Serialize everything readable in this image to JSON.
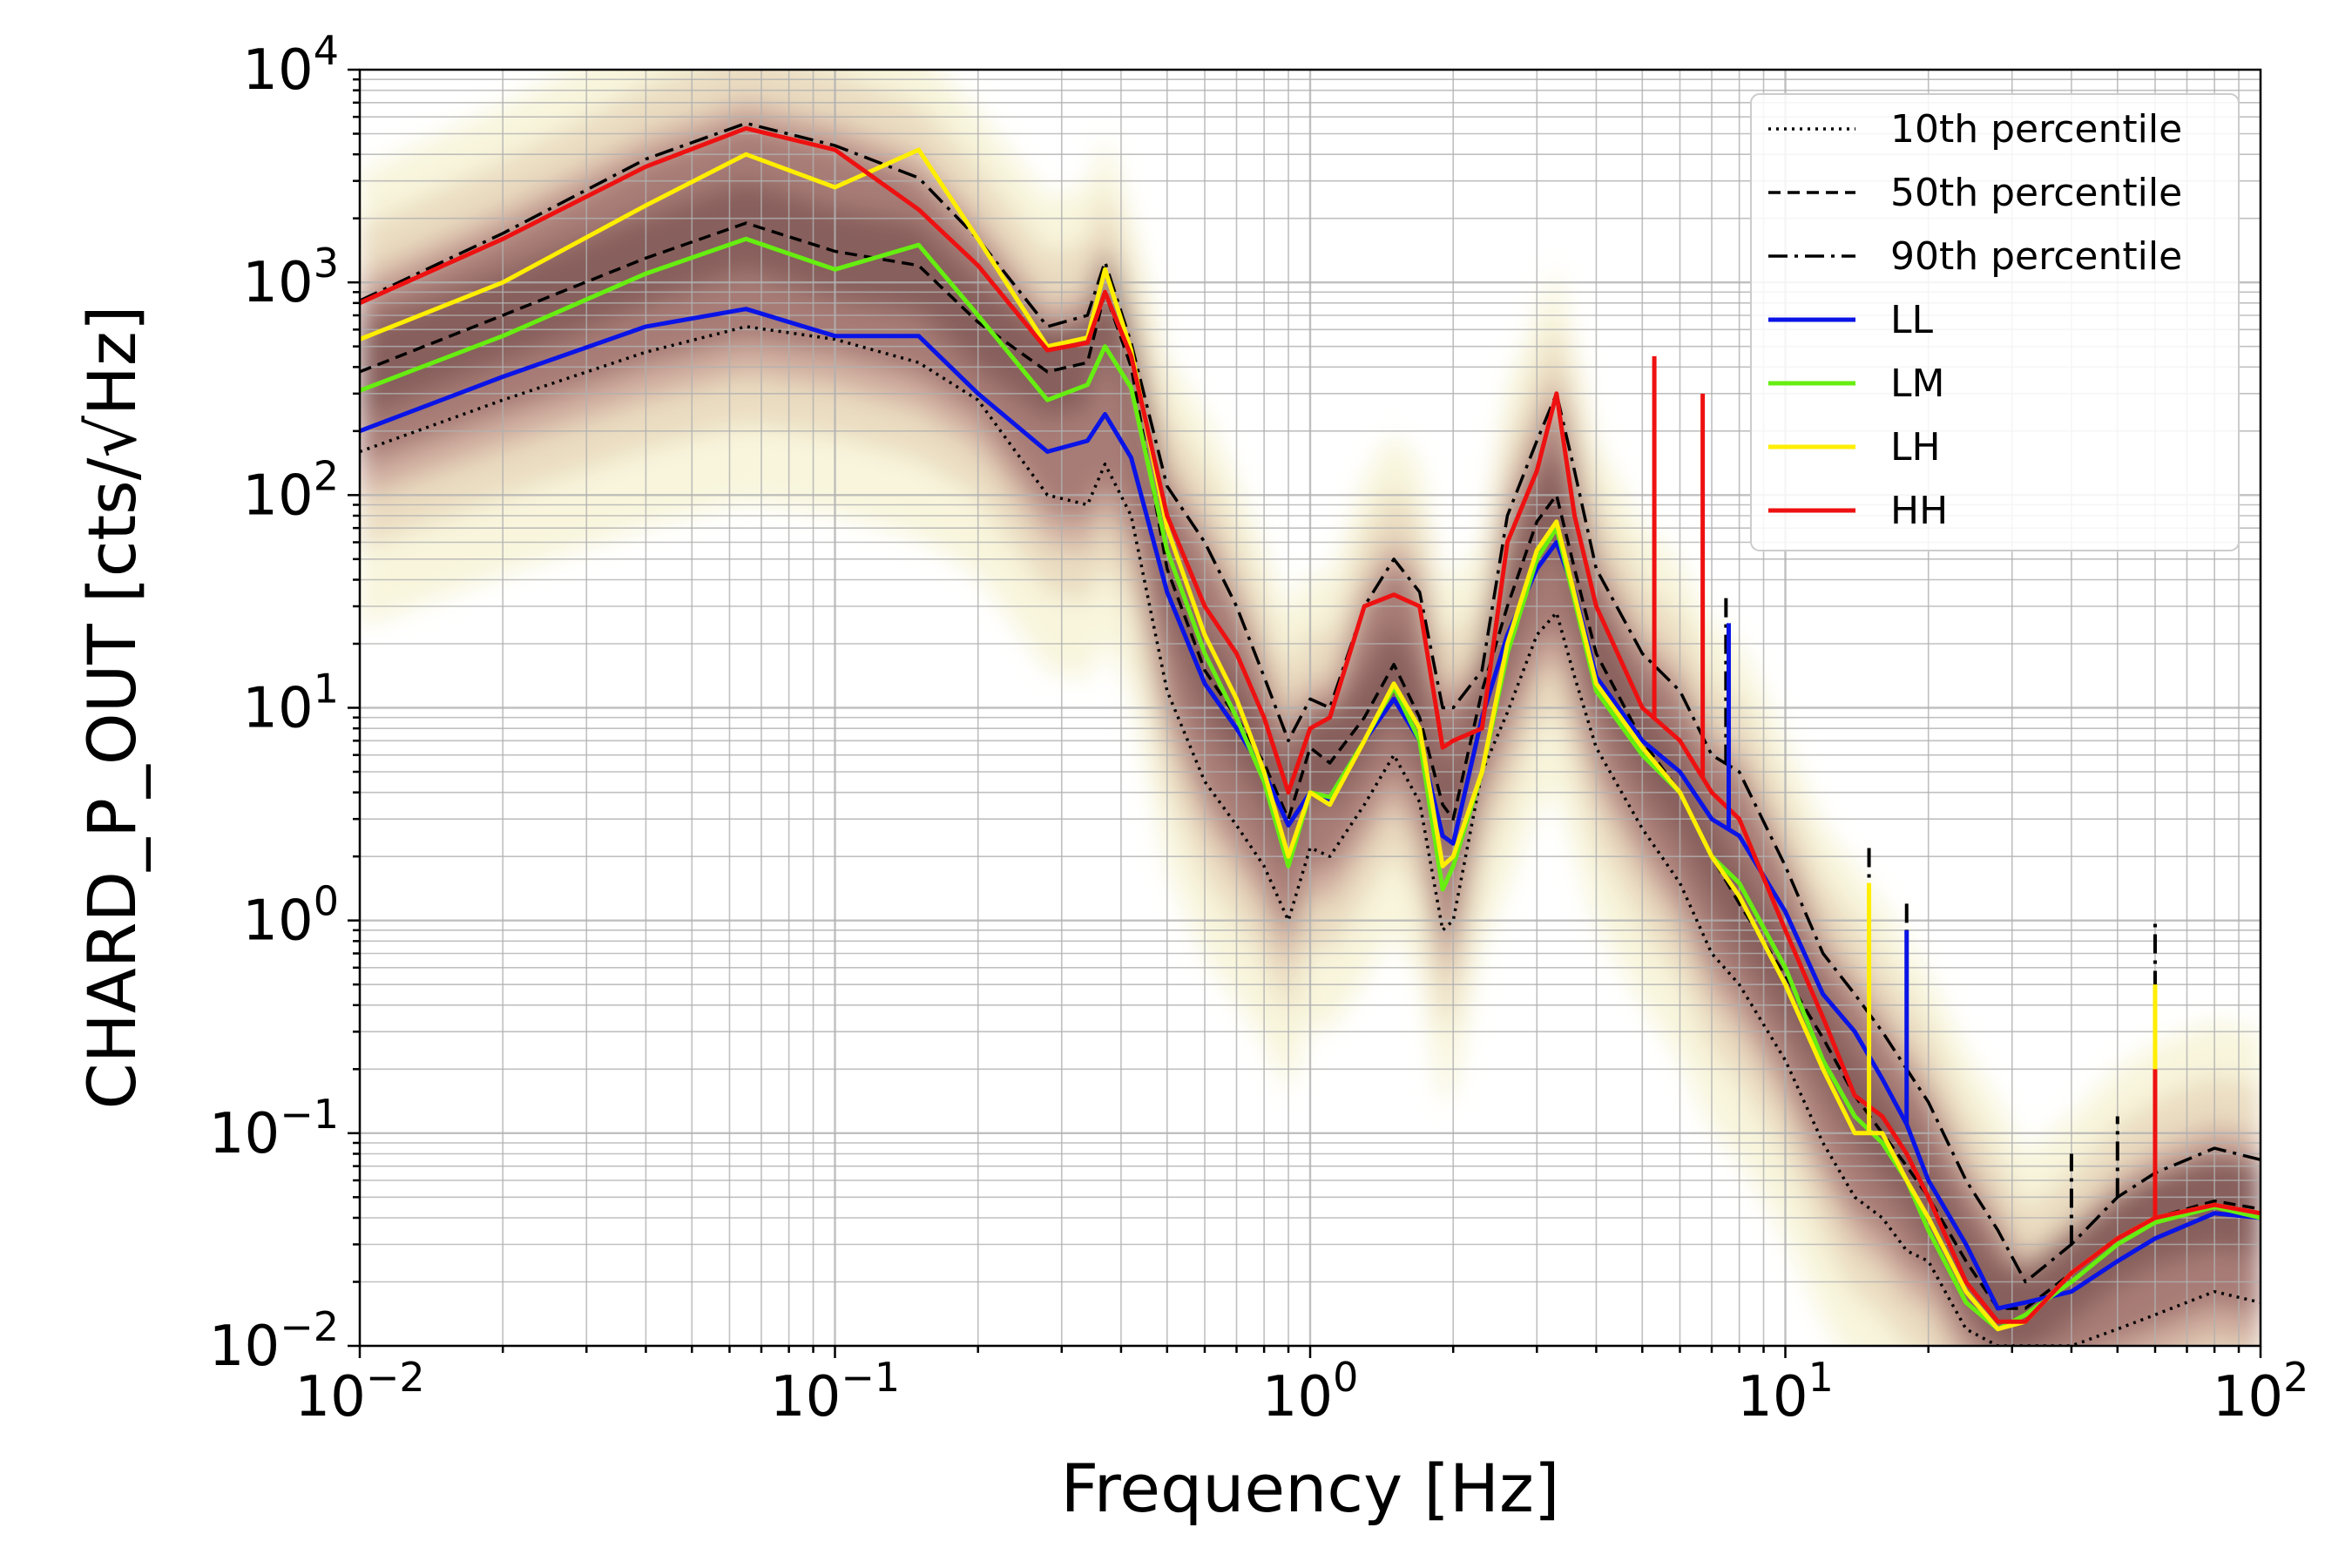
{
  "chart_data": {
    "type": "line",
    "xscale": "log",
    "yscale": "log",
    "xlabel": "Frequency [Hz]",
    "ylabel": "CHARD_P_OUT [cts/√Hz]",
    "xlim": [
      0.01,
      100
    ],
    "ylim": [
      0.01,
      10000
    ],
    "grid": true,
    "legend_position": "top-right",
    "x_ticks": [
      {
        "base": "10",
        "exp": "−2",
        "value": 0.01
      },
      {
        "base": "10",
        "exp": "−1",
        "value": 0.1
      },
      {
        "base": "10",
        "exp": "0",
        "value": 1
      },
      {
        "base": "10",
        "exp": "1",
        "value": 10
      },
      {
        "base": "10",
        "exp": "2",
        "value": 100
      }
    ],
    "y_ticks": [
      {
        "base": "10",
        "exp": "−2",
        "value": 0.01
      },
      {
        "base": "10",
        "exp": "−1",
        "value": 0.1
      },
      {
        "base": "10",
        "exp": "0",
        "value": 1
      },
      {
        "base": "10",
        "exp": "1",
        "value": 10
      },
      {
        "base": "10",
        "exp": "2",
        "value": 100
      },
      {
        "base": "10",
        "exp": "3",
        "value": 1000
      },
      {
        "base": "10",
        "exp": "4",
        "value": 10000
      }
    ],
    "series": [
      {
        "name": "10th percentile",
        "color": "#000000",
        "style": "dotted",
        "x": [
          0.01,
          0.02,
          0.04,
          0.065,
          0.1,
          0.15,
          0.2,
          0.28,
          0.34,
          0.37,
          0.42,
          0.5,
          0.6,
          0.7,
          0.8,
          0.9,
          1.0,
          1.1,
          1.3,
          1.5,
          1.7,
          1.9,
          2.0,
          2.3,
          2.6,
          3.0,
          3.3,
          3.6,
          4.0,
          5.0,
          6.0,
          7.0,
          8.0,
          10.0,
          12.0,
          14.0,
          16.0,
          18.0,
          20.0,
          24.0,
          28.0,
          32.0,
          40.0,
          50.0,
          60.0,
          80.0,
          100.0
        ],
        "y": [
          160,
          280,
          470,
          620,
          540,
          420,
          280,
          100,
          90,
          140,
          80,
          12,
          4.5,
          2.8,
          1.8,
          1.0,
          2.2,
          2.0,
          3.5,
          6.0,
          3.6,
          0.9,
          1.0,
          5.0,
          9.5,
          22,
          28,
          14,
          6.5,
          2.7,
          1.5,
          0.7,
          0.5,
          0.22,
          0.09,
          0.05,
          0.04,
          0.028,
          0.025,
          0.012,
          0.01,
          0.01,
          0.01,
          0.012,
          0.014,
          0.018,
          0.016
        ]
      },
      {
        "name": "50th percentile",
        "color": "#000000",
        "style": "dashed",
        "x": [
          0.01,
          0.02,
          0.04,
          0.065,
          0.1,
          0.15,
          0.2,
          0.28,
          0.34,
          0.37,
          0.42,
          0.5,
          0.6,
          0.7,
          0.8,
          0.9,
          1.0,
          1.1,
          1.3,
          1.5,
          1.7,
          1.9,
          2.0,
          2.3,
          2.6,
          3.0,
          3.3,
          3.6,
          4.0,
          5.0,
          6.0,
          7.0,
          8.0,
          10.0,
          12.0,
          14.0,
          16.0,
          18.0,
          20.0,
          24.0,
          28.0,
          32.0,
          40.0,
          50.0,
          60.0,
          80.0,
          100.0
        ],
        "y": [
          380,
          700,
          1300,
          1900,
          1400,
          1200,
          650,
          380,
          420,
          900,
          400,
          45,
          15,
          9.0,
          5.5,
          3.0,
          6.5,
          5.5,
          9.0,
          16,
          9.0,
          3.5,
          3.0,
          12,
          30,
          75,
          100,
          45,
          18,
          7.0,
          4.0,
          2.0,
          1.2,
          0.55,
          0.28,
          0.15,
          0.1,
          0.07,
          0.05,
          0.025,
          0.015,
          0.015,
          0.022,
          0.032,
          0.04,
          0.048,
          0.044
        ]
      },
      {
        "name": "90th percentile",
        "color": "#000000",
        "style": "dashdot",
        "x": [
          0.01,
          0.02,
          0.04,
          0.065,
          0.1,
          0.15,
          0.2,
          0.28,
          0.34,
          0.37,
          0.42,
          0.5,
          0.6,
          0.7,
          0.8,
          0.9,
          1.0,
          1.1,
          1.3,
          1.5,
          1.7,
          1.9,
          2.0,
          2.3,
          2.6,
          3.0,
          3.3,
          3.6,
          4.0,
          5.0,
          6.0,
          7.0,
          8.0,
          10.0,
          12.0,
          14.0,
          16.0,
          18.0,
          20.0,
          24.0,
          28.0,
          32.0,
          40.0,
          50.0,
          60.0,
          80.0,
          100.0
        ],
        "y": [
          820,
          1700,
          3800,
          5600,
          4400,
          3100,
          1600,
          620,
          700,
          1250,
          520,
          110,
          60,
          30,
          14,
          7.0,
          11,
          10,
          30,
          50,
          35,
          10,
          10,
          15,
          80,
          180,
          300,
          130,
          45,
          18,
          12,
          6.0,
          5.0,
          1.8,
          0.7,
          0.45,
          0.3,
          0.2,
          0.14,
          0.06,
          0.035,
          0.02,
          0.03,
          0.05,
          0.065,
          0.085,
          0.075
        ]
      },
      {
        "name": "LL",
        "color": "#0a14e6",
        "style": "solid",
        "x": [
          0.01,
          0.02,
          0.04,
          0.065,
          0.1,
          0.15,
          0.2,
          0.28,
          0.34,
          0.37,
          0.42,
          0.5,
          0.6,
          0.7,
          0.8,
          0.9,
          1.0,
          1.1,
          1.3,
          1.5,
          1.7,
          1.9,
          2.0,
          2.3,
          2.6,
          3.0,
          3.3,
          3.6,
          4.0,
          5.0,
          6.0,
          7.0,
          8.0,
          10.0,
          12.0,
          14.0,
          16.0,
          18.0,
          20.0,
          24.0,
          28.0,
          32.0,
          40.0,
          50.0,
          60.0,
          80.0,
          100.0
        ],
        "y": [
          200,
          360,
          620,
          750,
          560,
          560,
          300,
          160,
          180,
          240,
          150,
          35,
          13,
          8.0,
          5.0,
          2.8,
          4.0,
          3.6,
          7.0,
          11,
          7.0,
          2.5,
          2.3,
          9.0,
          22,
          45,
          60,
          35,
          14,
          7.0,
          5.0,
          3.0,
          2.5,
          1.1,
          0.45,
          0.3,
          0.18,
          0.11,
          0.06,
          0.03,
          0.015,
          0.016,
          0.018,
          0.025,
          0.032,
          0.042,
          0.04
        ]
      },
      {
        "name": "LM",
        "color": "#66ee11",
        "style": "solid",
        "x": [
          0.01,
          0.02,
          0.04,
          0.065,
          0.1,
          0.15,
          0.2,
          0.28,
          0.34,
          0.37,
          0.42,
          0.5,
          0.6,
          0.7,
          0.8,
          0.9,
          1.0,
          1.1,
          1.3,
          1.5,
          1.7,
          1.9,
          2.0,
          2.3,
          2.6,
          3.0,
          3.3,
          3.6,
          4.0,
          5.0,
          6.0,
          7.0,
          8.0,
          10.0,
          12.0,
          14.0,
          16.0,
          18.0,
          20.0,
          24.0,
          28.0,
          32.0,
          40.0,
          50.0,
          60.0,
          80.0,
          100.0
        ],
        "y": [
          310,
          560,
          1100,
          1600,
          1150,
          1500,
          700,
          280,
          330,
          500,
          320,
          55,
          18,
          9.0,
          4.5,
          1.8,
          4.0,
          3.8,
          7.0,
          12.5,
          7.0,
          1.4,
          1.8,
          5.0,
          18,
          50,
          70,
          32,
          12,
          6.0,
          4.0,
          2.0,
          1.5,
          0.6,
          0.22,
          0.12,
          0.09,
          0.06,
          0.035,
          0.016,
          0.012,
          0.014,
          0.02,
          0.03,
          0.038,
          0.045,
          0.04
        ]
      },
      {
        "name": "LH",
        "color": "#ffee00",
        "style": "solid",
        "x": [
          0.01,
          0.02,
          0.04,
          0.065,
          0.1,
          0.15,
          0.2,
          0.28,
          0.34,
          0.37,
          0.42,
          0.5,
          0.6,
          0.7,
          0.8,
          0.9,
          1.0,
          1.1,
          1.3,
          1.5,
          1.7,
          1.9,
          2.0,
          2.3,
          2.6,
          3.0,
          3.3,
          3.6,
          4.0,
          5.0,
          6.0,
          7.0,
          8.0,
          10.0,
          12.0,
          14.0,
          16.0,
          18.0,
          20.0,
          24.0,
          28.0,
          32.0,
          40.0,
          50.0,
          60.0,
          80.0,
          100.0
        ],
        "y": [
          540,
          1000,
          2300,
          4000,
          2800,
          4200,
          1600,
          500,
          550,
          1150,
          480,
          70,
          22,
          11,
          5.0,
          2.0,
          4.0,
          3.5,
          7.0,
          13,
          8.0,
          1.8,
          2.0,
          5.0,
          20,
          55,
          75,
          34,
          13,
          6.5,
          4.0,
          2.0,
          1.3,
          0.5,
          0.2,
          0.1,
          0.1,
          0.06,
          0.04,
          0.018,
          0.012,
          0.013,
          0.022,
          0.032,
          0.04,
          0.046,
          0.042
        ]
      },
      {
        "name": "HH",
        "color": "#ee1111",
        "style": "solid",
        "x": [
          0.01,
          0.02,
          0.04,
          0.065,
          0.1,
          0.15,
          0.2,
          0.28,
          0.34,
          0.37,
          0.42,
          0.5,
          0.6,
          0.7,
          0.8,
          0.9,
          1.0,
          1.1,
          1.3,
          1.5,
          1.7,
          1.9,
          2.0,
          2.3,
          2.6,
          3.0,
          3.3,
          3.6,
          4.0,
          5.0,
          6.0,
          7.0,
          8.0,
          10.0,
          12.0,
          14.0,
          16.0,
          18.0,
          20.0,
          24.0,
          28.0,
          32.0,
          40.0,
          50.0,
          60.0,
          80.0,
          100.0
        ],
        "y": [
          800,
          1600,
          3500,
          5300,
          4200,
          2200,
          1200,
          480,
          520,
          900,
          450,
          80,
          30,
          18,
          9.0,
          4.0,
          8.0,
          9.0,
          30,
          34,
          30,
          6.5,
          7.0,
          8.0,
          60,
          130,
          300,
          80,
          30,
          10,
          7.0,
          4.0,
          3.0,
          0.9,
          0.35,
          0.15,
          0.12,
          0.08,
          0.05,
          0.02,
          0.013,
          0.013,
          0.022,
          0.032,
          0.04,
          0.046,
          0.042
        ]
      }
    ],
    "spikes": [
      {
        "series": "HH",
        "x": 5.3,
        "y": 450
      },
      {
        "series": "HH",
        "x": 6.7,
        "y": 300
      },
      {
        "series": "90th percentile",
        "x": 7.5,
        "y": 35
      },
      {
        "series": "LL",
        "x": 7.6,
        "y": 25
      },
      {
        "series": "90th percentile",
        "x": 15.0,
        "y": 2.3
      },
      {
        "series": "LH",
        "x": 15.0,
        "y": 1.5
      },
      {
        "series": "90th percentile",
        "x": 18.0,
        "y": 1.2
      },
      {
        "series": "LL",
        "x": 18.0,
        "y": 0.9
      },
      {
        "series": "90th percentile",
        "x": 60.0,
        "y": 1.0
      },
      {
        "series": "LH",
        "x": 60.0,
        "y": 0.5
      },
      {
        "series": "HH",
        "x": 60.0,
        "y": 0.2
      },
      {
        "series": "90th percentile",
        "x": 50.0,
        "y": 0.12
      },
      {
        "series": "90th percentile",
        "x": 40.0,
        "y": 0.08
      }
    ]
  }
}
